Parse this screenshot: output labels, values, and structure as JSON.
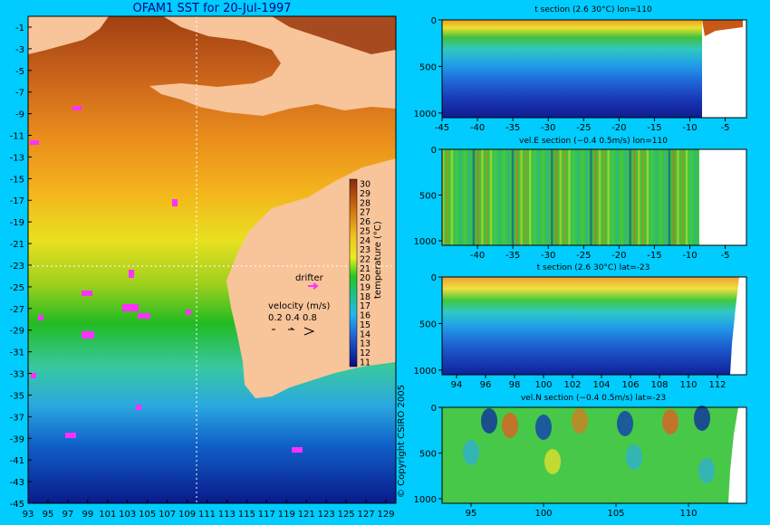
{
  "map": {
    "title": "OFAM1 SST for 20-Jul-1997",
    "lat_ticks": [
      "-1",
      "-3",
      "-5",
      "-7",
      "-9",
      "-11",
      "-13",
      "-15",
      "-17",
      "-19",
      "-21",
      "-23",
      "-25",
      "-27",
      "-29",
      "-31",
      "-33",
      "-35",
      "-37",
      "-39",
      "-41",
      "-43",
      "-45"
    ],
    "lon_ticks": [
      "93",
      "95",
      "97",
      "99",
      "101",
      "103",
      "105",
      "107",
      "109",
      "111",
      "113",
      "115",
      "117",
      "119",
      "121",
      "123",
      "125",
      "127",
      "129"
    ],
    "colorbar_label": "temperature (°C)",
    "colorbar_ticks": [
      "30",
      "29",
      "28",
      "27",
      "26",
      "25",
      "24",
      "23",
      "22",
      "21",
      "20",
      "19",
      "18",
      "17",
      "16",
      "15",
      "14",
      "13",
      "12",
      "11"
    ],
    "drifter_label": "drifter",
    "velocity_label": "velocity (m/s)",
    "velocity_scale": [
      "0.2",
      "0.4",
      "0.8"
    ],
    "copyright": "© Copyright CSIRO 2005"
  },
  "panels": [
    {
      "title": "t section (2.6       30°C) lon=110",
      "y_ticks": [
        "0",
        "500",
        "1000"
      ],
      "x_ticks": [
        "-45",
        "-40",
        "-35",
        "-30",
        "-25",
        "-20",
        "-15",
        "-10",
        "-5"
      ]
    },
    {
      "title": "vel.E section (−0.4       0.5m/s) lon=110",
      "y_ticks": [
        "0",
        "500",
        "1000"
      ],
      "x_ticks": [
        "-40",
        "-35",
        "-30",
        "-25",
        "-20",
        "-15",
        "-10",
        "-5"
      ]
    },
    {
      "title": "t section (2.6       30°C) lat=-23",
      "y_ticks": [
        "0",
        "500",
        "1000"
      ],
      "x_ticks": [
        "94",
        "96",
        "98",
        "100",
        "102",
        "104",
        "106",
        "108",
        "110",
        "112"
      ]
    },
    {
      "title": "vel.N section (−0.4       0.5m/s) lat=-23",
      "y_ticks": [
        "0",
        "500",
        "1000"
      ],
      "x_ticks": [
        "95",
        "100",
        "105",
        "110"
      ]
    }
  ],
  "chart_data": [
    {
      "type": "heatmap",
      "title": "OFAM1 SST for 20-Jul-1997",
      "x_range": [
        93,
        130
      ],
      "y_range": [
        -45,
        0
      ],
      "colorbar_range": [
        11,
        30
      ],
      "colorbar_label": "temperature (°C)"
    },
    {
      "type": "heatmap",
      "title": "t section (2.6 30°C) lon=110",
      "x_range": [
        -45,
        -2
      ],
      "y_range": [
        1050,
        0
      ],
      "value_range": [
        2.6,
        30
      ]
    },
    {
      "type": "heatmap",
      "title": "vel.E section (−0.4 0.5m/s) lon=110",
      "x_range": [
        -45,
        -2
      ],
      "y_range": [
        1050,
        0
      ],
      "value_range": [
        -0.4,
        0.5
      ]
    },
    {
      "type": "heatmap",
      "title": "t section (2.6 30°C) lat=-23",
      "x_range": [
        93,
        114
      ],
      "y_range": [
        1050,
        0
      ],
      "value_range": [
        2.6,
        30
      ]
    },
    {
      "type": "heatmap",
      "title": "vel.N section (−0.4 0.5m/s) lat=-23",
      "x_range": [
        93,
        114
      ],
      "y_range": [
        1050,
        0
      ],
      "value_range": [
        -0.4,
        0.5
      ]
    }
  ]
}
